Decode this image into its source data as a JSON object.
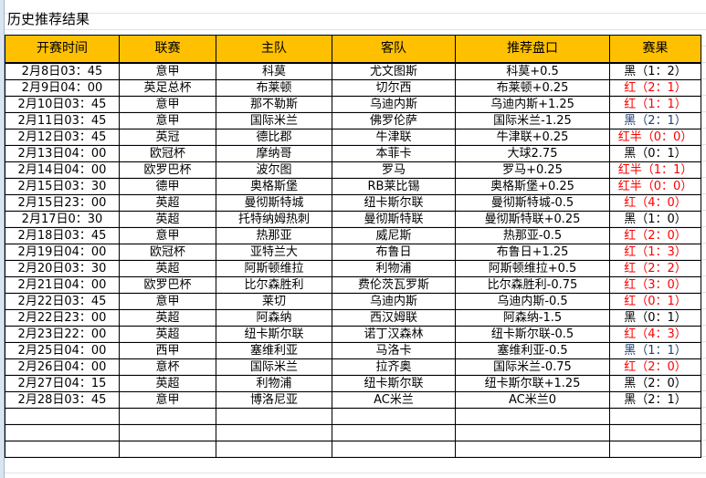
{
  "title": "历史推荐结果",
  "colors": {
    "header_bg": "#ffc000",
    "red": "#ff0000",
    "blue": "#1f3f7a"
  },
  "columns": [
    "开赛时间",
    "联赛",
    "主队",
    "客队",
    "推荐盘口",
    "赛果"
  ],
  "rows": [
    {
      "time": "2月8日03：45",
      "league": "意甲",
      "home": "科莫",
      "away": "尤文图斯",
      "pick": "科莫+0.5",
      "result": "黑（1：2）",
      "color": "black"
    },
    {
      "time": "2月9日04：00",
      "league": "英足总杯",
      "home": "布莱顿",
      "away": "切尔西",
      "pick": "布莱顿+0.25",
      "result": "红（2：1）",
      "color": "red"
    },
    {
      "time": "2月10日03：45",
      "league": "意甲",
      "home": "那不勒斯",
      "away": "乌迪内斯",
      "pick": "乌迪内斯+1.25",
      "result": "红（1：1）",
      "color": "red"
    },
    {
      "time": "2月11日03：45",
      "league": "意甲",
      "home": "国际米兰",
      "away": "佛罗伦萨",
      "pick": "国际米兰-1.25",
      "result": "黑（2：1）",
      "color": "blue"
    },
    {
      "time": "2月12日03：45",
      "league": "英冠",
      "home": "德比郡",
      "away": "牛津联",
      "pick": "牛津联+0.25",
      "result": "红半（0：0）",
      "color": "red"
    },
    {
      "time": "2月13日04：00",
      "league": "欧冠杯",
      "home": "摩纳哥",
      "away": "本菲卡",
      "pick": "大球2.75",
      "result": "黑（0：1）",
      "color": "black"
    },
    {
      "time": "2月14日04：00",
      "league": "欧罗巴杯",
      "home": "波尔图",
      "away": "罗马",
      "pick": "罗马+0.25",
      "result": "红半（1：1）",
      "color": "red"
    },
    {
      "time": "2月15日03：30",
      "league": "德甲",
      "home": "奥格斯堡",
      "away": "RB莱比锡",
      "pick": "奥格斯堡+0.25",
      "result": "红半（0：0）",
      "color": "red"
    },
    {
      "time": "2月15日23：00",
      "league": "英超",
      "home": "曼彻斯特城",
      "away": "纽卡斯尔联",
      "pick": "曼彻斯特城-0.5",
      "result": "红（4：0）",
      "color": "red"
    },
    {
      "time": "2月17日0：30",
      "league": "英超",
      "home": "托特纳姆热刺",
      "away": "曼彻斯特联",
      "pick": "曼彻斯特联+0.25",
      "result": "黑（1：0）",
      "color": "black"
    },
    {
      "time": "2月18日03：45",
      "league": "意甲",
      "home": "热那亚",
      "away": "威尼斯",
      "pick": "热那亚-0.5",
      "result": "红（2：0）",
      "color": "red"
    },
    {
      "time": "2月19日04：00",
      "league": "欧冠杯",
      "home": "亚特兰大",
      "away": "布鲁日",
      "pick": "布鲁日+1.25",
      "result": "红（1：3）",
      "color": "red"
    },
    {
      "time": "2月20日03：30",
      "league": "英超",
      "home": "阿斯顿维拉",
      "away": "利物浦",
      "pick": "阿斯顿维拉+0.5",
      "result": "红（2：2）",
      "color": "red"
    },
    {
      "time": "2月21日04：00",
      "league": "欧罗巴杯",
      "home": "比尔森胜利",
      "away": "费伦茨瓦罗斯",
      "pick": "比尔森胜利-0.75",
      "result": "红（3：0）",
      "color": "red"
    },
    {
      "time": "2月22日03：45",
      "league": "意甲",
      "home": "莱切",
      "away": "乌迪内斯",
      "pick": "乌迪内斯-0.5",
      "result": "红（0：1）",
      "color": "red"
    },
    {
      "time": "2月22日23：00",
      "league": "英超",
      "home": "阿森纳",
      "away": "西汉姆联",
      "pick": "阿森纳-1.5",
      "result": "黑（0：1）",
      "color": "black"
    },
    {
      "time": "2月23日22：00",
      "league": "英超",
      "home": "纽卡斯尔联",
      "away": "诺丁汉森林",
      "pick": "纽卡斯尔联-0.5",
      "result": "红（4：3）",
      "color": "red"
    },
    {
      "time": "2月25日04：00",
      "league": "西甲",
      "home": "塞维利亚",
      "away": "马洛卡",
      "pick": "塞维利亚-0.5",
      "result": "黑（1：1）",
      "color": "blue"
    },
    {
      "time": "2月26日04：00",
      "league": "意杯",
      "home": "国际米兰",
      "away": "拉齐奥",
      "pick": "国际米兰-0.75",
      "result": "红（2：0）",
      "color": "red"
    },
    {
      "time": "2月27日04：15",
      "league": "英超",
      "home": "利物浦",
      "away": "纽卡斯尔联",
      "pick": "纽卡斯尔联+1.25",
      "result": "黑（2：0）",
      "color": "black"
    },
    {
      "time": "2月28日03：45",
      "league": "意甲",
      "home": "博洛尼亚",
      "away": "AC米兰",
      "pick": "AC米兰0",
      "result": "黑（2：1）",
      "color": "black"
    }
  ]
}
